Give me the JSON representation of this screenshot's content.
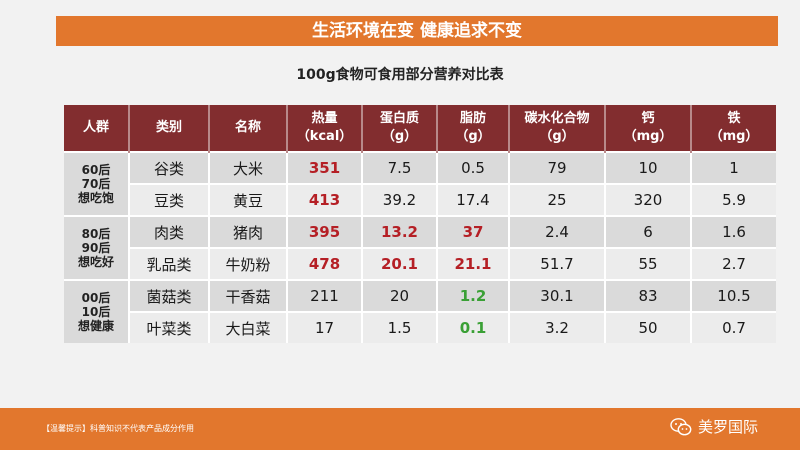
{
  "banner": {
    "title": "生活环境在变 健康追求不变"
  },
  "table_title": "100g食物可食用部分营养对比表",
  "headers": [
    {
      "line1": "人群",
      "line2": ""
    },
    {
      "line1": "类别",
      "line2": ""
    },
    {
      "line1": "名称",
      "line2": ""
    },
    {
      "line1": "热量",
      "line2": "（kcal）"
    },
    {
      "line1": "蛋白质",
      "line2": "（g）"
    },
    {
      "line1": "脂肪",
      "line2": "（g）"
    },
    {
      "line1": "碳水化合物",
      "line2": "（g）"
    },
    {
      "line1": "钙",
      "line2": "（mg）"
    },
    {
      "line1": "铁",
      "line2": "（mg）"
    }
  ],
  "groups": [
    {
      "line1": "60后",
      "line2": "70后",
      "line3": "想吃饱",
      "rows": [
        {
          "category": "谷类",
          "name": "大米",
          "kcal": "351",
          "protein": "7.5",
          "fat": "0.5",
          "carbs": "79",
          "calcium": "10",
          "iron": "1"
        },
        {
          "category": "豆类",
          "name": "黄豆",
          "kcal": "413",
          "protein": "39.2",
          "fat": "17.4",
          "carbs": "25",
          "calcium": "320",
          "iron": "5.9"
        }
      ]
    },
    {
      "line1": "80后",
      "line2": "90后",
      "line3": "想吃好",
      "rows": [
        {
          "category": "肉类",
          "name": "猪肉",
          "kcal": "395",
          "protein": "13.2",
          "fat": "37",
          "carbs": "2.4",
          "calcium": "6",
          "iron": "1.6"
        },
        {
          "category": "乳品类",
          "name": "牛奶粉",
          "kcal": "478",
          "protein": "20.1",
          "fat": "21.1",
          "carbs": "51.7",
          "calcium": "55",
          "iron": "2.7"
        }
      ]
    },
    {
      "line1": "00后",
      "line2": "10后",
      "line3": "想健康",
      "rows": [
        {
          "category": "菌菇类",
          "name": "干香菇",
          "kcal": "211",
          "protein": "20",
          "fat": "1.2",
          "carbs": "30.1",
          "calcium": "83",
          "iron": "10.5"
        },
        {
          "category": "叶菜类",
          "name": "大白菜",
          "kcal": "17",
          "protein": "1.5",
          "fat": "0.1",
          "carbs": "3.2",
          "calcium": "50",
          "iron": "0.7"
        }
      ]
    }
  ],
  "footer": {
    "note": "【温馨提示】科普知识不代表产品成分作用",
    "brand": "美罗国际",
    "brand_icon": "wechat-icon"
  },
  "colors": {
    "accent": "#e2772d",
    "header_bg": "#822d2f",
    "highlight_red": "#b51f25",
    "highlight_green": "#3aa035"
  }
}
